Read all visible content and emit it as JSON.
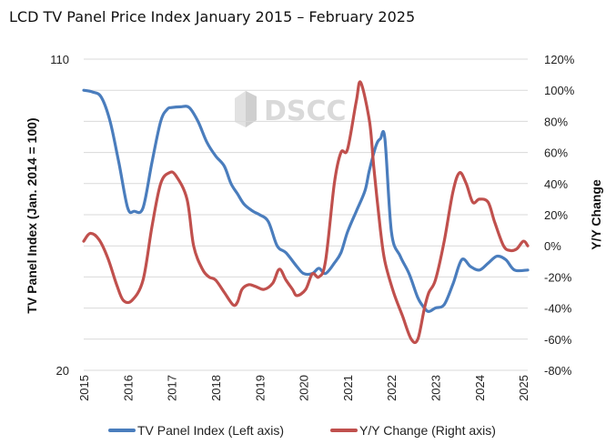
{
  "chart_data": {
    "type": "line",
    "title": "LCD TV Panel Price Index January 2015 – February 2025",
    "watermark": "DSCC",
    "ylabel_left": "TV Panel Index (Jan. 2014 = 100)",
    "ylabel_right": "Y/Y Change",
    "ylim_left": [
      20,
      110
    ],
    "ylim_right": [
      -80,
      120
    ],
    "yticks_left": [
      "110",
      "20"
    ],
    "yticks_right": [
      "120%",
      "100%",
      "80%",
      "60%",
      "40%",
      "20%",
      "0%",
      "-20%",
      "-40%",
      "-60%",
      "-80%"
    ],
    "xlim": [
      2015,
      2025.1
    ],
    "xticks": [
      "2015",
      "2016",
      "2017",
      "2018",
      "2019",
      "2020",
      "2021",
      "2022",
      "2023",
      "2024",
      "2025"
    ],
    "grid": "horizontal",
    "legend_position": "bottom",
    "series": [
      {
        "name": "TV Panel Index (Left axis)",
        "axis": "left",
        "color": "#4a7dbd",
        "x": [
          2015.0,
          2015.2,
          2015.4,
          2015.6,
          2015.8,
          2016.0,
          2016.15,
          2016.35,
          2016.55,
          2016.75,
          2016.9,
          2017.0,
          2017.2,
          2017.4,
          2017.6,
          2017.8,
          2018.0,
          2018.2,
          2018.35,
          2018.5,
          2018.65,
          2018.85,
          2019.0,
          2019.2,
          2019.4,
          2019.6,
          2019.85,
          2020.0,
          2020.2,
          2020.35,
          2020.5,
          2020.7,
          2020.85,
          2021.0,
          2021.2,
          2021.4,
          2021.5,
          2021.65,
          2021.75,
          2021.85,
          2022.0,
          2022.2,
          2022.4,
          2022.6,
          2022.75,
          2022.85,
          2023.0,
          2023.2,
          2023.4,
          2023.6,
          2023.8,
          2024.0,
          2024.2,
          2024.4,
          2024.6,
          2024.8,
          2025.1
        ],
        "values": [
          101,
          100.5,
          99,
          92,
          80,
          67,
          66,
          67,
          80,
          92,
          95.5,
          96,
          96.2,
          96,
          92,
          86,
          82,
          79,
          74,
          71,
          68,
          66,
          65,
          63,
          56,
          54,
          50,
          48,
          48,
          49.5,
          48,
          51,
          54,
          60,
          66,
          72,
          78,
          85,
          87,
          87,
          60,
          53,
          48,
          41,
          38,
          37,
          38,
          39,
          45,
          52,
          50,
          49,
          51,
          53,
          52,
          49,
          49
        ]
      },
      {
        "name": "Y/Y Change (Right axis)",
        "axis": "right",
        "color": "#c0504d",
        "x": [
          2015.0,
          2015.15,
          2015.35,
          2015.55,
          2015.75,
          2015.9,
          2016.1,
          2016.35,
          2016.55,
          2016.75,
          2016.95,
          2017.1,
          2017.35,
          2017.5,
          2017.7,
          2017.85,
          2018.0,
          2018.2,
          2018.4,
          2018.5,
          2018.6,
          2018.75,
          2018.9,
          2019.1,
          2019.3,
          2019.45,
          2019.6,
          2019.75,
          2019.85,
          2020.05,
          2020.2,
          2020.35,
          2020.5,
          2020.7,
          2020.85,
          2021.0,
          2021.2,
          2021.3,
          2021.5,
          2021.6,
          2021.75,
          2021.85,
          2022.05,
          2022.25,
          2022.45,
          2022.6,
          2022.75,
          2022.85,
          2023.0,
          2023.2,
          2023.4,
          2023.55,
          2023.7,
          2023.85,
          2024.0,
          2024.2,
          2024.35,
          2024.55,
          2024.7,
          2024.85,
          2025.0,
          2025.1
        ],
        "values": [
          3,
          8,
          4,
          -8,
          -25,
          -35,
          -35,
          -22,
          12,
          40,
          47,
          45,
          30,
          0,
          -15,
          -20,
          -22,
          -30,
          -38,
          -36,
          -28,
          -25,
          -26,
          -28,
          -24,
          -15,
          -22,
          -28,
          -32,
          -28,
          -18,
          -20,
          -10,
          40,
          60,
          62,
          93,
          105,
          80,
          50,
          10,
          -10,
          -30,
          -45,
          -60,
          -60,
          -40,
          -30,
          -22,
          3,
          35,
          47,
          40,
          28,
          30,
          28,
          15,
          0,
          -3,
          -2,
          3,
          0
        ]
      }
    ]
  }
}
